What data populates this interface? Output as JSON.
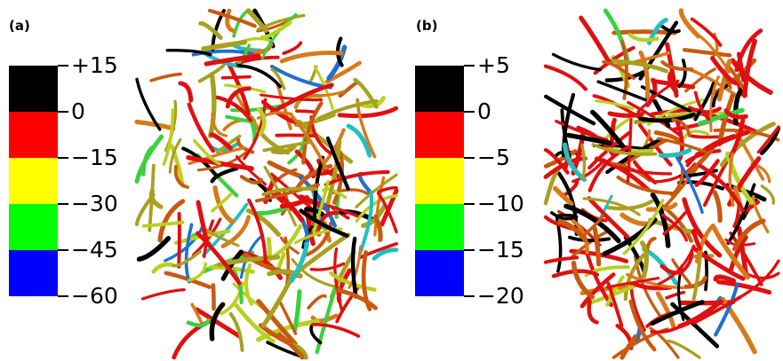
{
  "panels": [
    {
      "label": "(a)",
      "colorbar": {
        "colors": [
          "#000000",
          "#ff0000",
          "#ffff00",
          "#00ff00",
          "#0000ff"
        ],
        "ticks": [
          "+15",
          "0",
          "−15",
          "−30",
          "−45",
          "−60"
        ]
      },
      "network_icon": "fiber-network-icon"
    },
    {
      "label": "(b)",
      "colorbar": {
        "colors": [
          "#000000",
          "#ff0000",
          "#ffff00",
          "#00ff00",
          "#0000ff"
        ],
        "ticks": [
          "+5",
          "0",
          "−5",
          "−10",
          "−15",
          "−20"
        ]
      },
      "network_icon": "fiber-network-icon"
    }
  ],
  "palette": {
    "black": "#000000",
    "red": "#e01010",
    "dark-orange": "#c85a10",
    "orange": "#d87a1a",
    "olive": "#a8a020",
    "yellow-green": "#b8d020",
    "green": "#3ad040",
    "cyan": "#20c0c0",
    "blue": "#2070d0"
  }
}
